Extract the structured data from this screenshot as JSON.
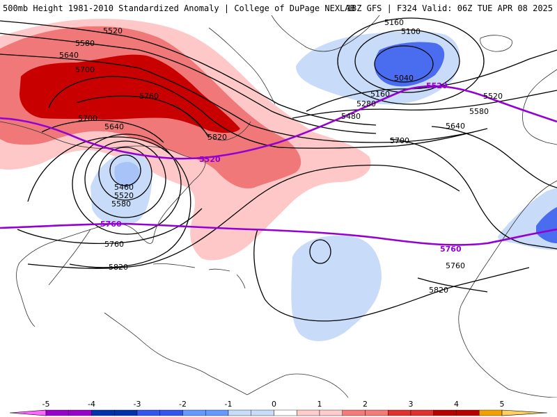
{
  "header": {
    "title": "500mb Height 1981-2010 Standardized Anomaly | College of DuPage NEXLAB",
    "run_info": "18Z GFS | F324 Valid: 06Z TUE APR 08 2025"
  },
  "contour_labels": {
    "black": [
      "5520",
      "5580",
      "5640",
      "5700",
      "5760",
      "5700",
      "5640",
      "5820",
      "5460",
      "5520",
      "5580",
      "5760",
      "5820",
      "5160",
      "5100",
      "5040",
      "5160",
      "5280",
      "5480",
      "5520",
      "5580",
      "5640",
      "5700",
      "5760",
      "5820"
    ],
    "purple": [
      "5520",
      "5520",
      "5760",
      "5760"
    ]
  },
  "colorbar": {
    "ticks": [
      "-5",
      "-4",
      "-3",
      "-2",
      "-1",
      "0",
      "1",
      "2",
      "3",
      "4",
      "5"
    ],
    "colors": [
      "#ff66ff",
      "#9900cc",
      "#0033aa",
      "#3355ee",
      "#6699ff",
      "#c8dcfa",
      "#ffffff",
      "#ffcccc",
      "#f57a7a",
      "#e03030",
      "#b80000",
      "#f2a000",
      "#ffd060"
    ]
  },
  "colors": {
    "anomaly_pos_1": "#ffc8c8",
    "anomaly_pos_2": "#f07878",
    "anomaly_pos_3": "#c80000",
    "anomaly_neg_1": "#c8dcfa",
    "anomaly_neg_2": "#6f95f0",
    "anomaly_neg_3": "#4a6df0",
    "contour_black": "#000000",
    "contour_purple": "#9400d3"
  }
}
